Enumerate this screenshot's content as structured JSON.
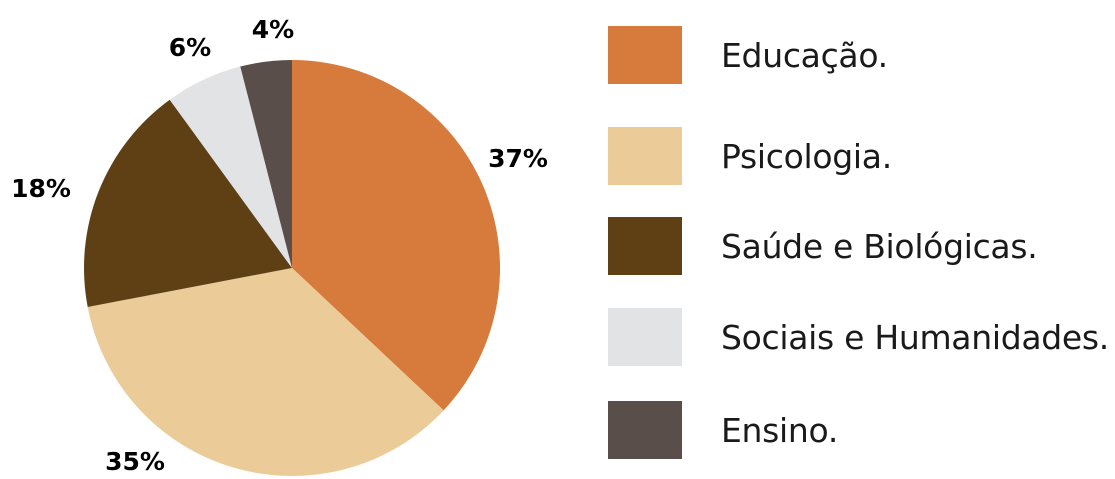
{
  "chart_data": {
    "type": "pie",
    "title": "",
    "start": "12 o'clock, clockwise",
    "slices": [
      {
        "label": "Educação.",
        "value": 37,
        "value_label": "37%",
        "color": "#D67B3B"
      },
      {
        "label": "Psicologia.",
        "value": 35,
        "value_label": "35%",
        "color": "#EBCB98"
      },
      {
        "label": "Saúde e Biológicas.",
        "value": 18,
        "value_label": "18%",
        "color": "#5F4015"
      },
      {
        "label": "Sociais e Humanidades.",
        "value": 6,
        "value_label": "6%",
        "color": "#E2E3E4"
      },
      {
        "label": "Ensino.",
        "value": 4,
        "value_label": "4%",
        "color": "#5A4E4B"
      }
    ],
    "legend_position": "right"
  }
}
